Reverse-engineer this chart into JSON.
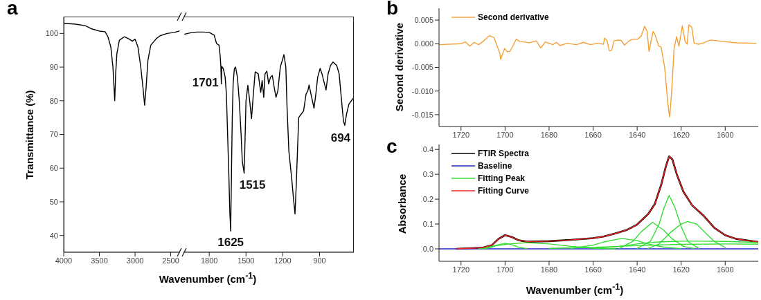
{
  "chart_data": [
    {
      "type": "line",
      "title": "a",
      "ylabel": "Transmittance (%)",
      "xlabel": "Wavenumber (cm$^{-1}$)",
      "xlim": [
        4000,
        2370
      ],
      "xticks": [
        4000,
        3500,
        3000,
        2500
      ],
      "ylim": [
        35,
        105
      ],
      "yticks": [
        40,
        50,
        60,
        70,
        80,
        90,
        100
      ],
      "series": [
        {
          "color": "#000000",
          "x": [
            4000,
            3850,
            3700,
            3600,
            3500,
            3420,
            3380,
            3340,
            3310,
            3295,
            3285,
            3272,
            3255,
            3220,
            3150,
            3080,
            3040,
            3000,
            2960,
            2920,
            2890,
            2866,
            2845,
            2820,
            2780,
            2700,
            2650,
            2550,
            2450,
            2380
          ],
          "values": [
            103,
            102.8,
            102.3,
            101.3,
            100.7,
            100.5,
            99,
            96,
            90,
            84,
            80,
            88,
            94,
            98,
            99,
            98.3,
            97.7,
            98.3,
            96,
            90,
            84,
            78.7,
            84,
            92,
            96.5,
            98.5,
            99.3,
            100,
            100.3,
            100.7
          ]
        }
      ]
    },
    {
      "type": "line",
      "xlim": [
        2010,
        620
      ],
      "xticks": [
        1800,
        1500,
        1200,
        900
      ],
      "ylim": [
        35,
        105
      ],
      "yticks": [
        40,
        50,
        60,
        70,
        80,
        90,
        100
      ],
      "tick_labels": "x",
      "annotations": [
        {
          "text": "1701",
          "x": 1701,
          "y": 85
        },
        {
          "text": "1625",
          "x": 1625,
          "y": 41.3
        },
        {
          "text": "1515",
          "x": 1515,
          "y": 58.5
        },
        {
          "text": "694",
          "x": 694,
          "y": 72.7
        }
      ],
      "series": [
        {
          "color": "#000000",
          "x": [
            2000,
            1950,
            1900,
            1850,
            1800,
            1760,
            1740,
            1720,
            1710,
            1705,
            1701,
            1698,
            1685,
            1670,
            1660,
            1650,
            1640,
            1632,
            1625,
            1618,
            1612,
            1605,
            1595,
            1585,
            1570,
            1555,
            1540,
            1530,
            1515,
            1508,
            1500,
            1485,
            1470,
            1455,
            1440,
            1425,
            1400,
            1380,
            1368,
            1355,
            1345,
            1330,
            1315,
            1300,
            1285,
            1270,
            1255,
            1240,
            1220,
            1190,
            1175,
            1165,
            1150,
            1130,
            1110,
            1100,
            1090,
            1080,
            1070,
            1050,
            1030,
            1010,
            995,
            985,
            970,
            945,
            930,
            915,
            895,
            880,
            847,
            830,
            810,
            790,
            760,
            740,
            720,
            705,
            694,
            680,
            660,
            640,
            620
          ],
          "values": [
            99.8,
            100.2,
            100.4,
            100.4,
            100.3,
            99.5,
            97,
            96.5,
            93,
            90,
            85,
            90.2,
            89.5,
            87,
            82,
            70,
            58,
            47,
            41.3,
            60,
            75,
            85,
            89.5,
            90,
            87,
            80,
            70,
            62,
            58.5,
            68,
            80,
            84.6,
            80,
            74.7,
            82,
            88.6,
            88,
            82.5,
            86,
            81,
            88,
            88.8,
            85,
            87,
            87.5,
            84,
            81,
            83,
            90,
            93.7,
            90,
            78,
            65,
            58,
            50,
            46.4,
            55,
            65,
            75,
            76,
            77,
            82,
            83,
            84.7,
            82,
            77.8,
            82,
            87,
            89.6,
            88,
            83.2,
            88,
            90.5,
            91.5,
            90.5,
            88,
            80,
            74,
            72.7,
            76,
            79,
            80,
            81
          ]
        }
      ]
    },
    {
      "type": "line",
      "title": "b",
      "ylabel": "Second derivative",
      "xlim": [
        1730,
        1585
      ],
      "xticks": [
        1720,
        1700,
        1680,
        1660,
        1640,
        1620,
        1600
      ],
      "ylim": [
        -0.0175,
        0.0075
      ],
      "yticks": [
        {
          "value": 0.005,
          "label": "0.005"
        },
        {
          "value": 0,
          "label": "0.000"
        },
        {
          "value": -0.005,
          "label": "-0.005"
        },
        {
          "value": -0.01,
          "label": "-0.010"
        },
        {
          "value": -0.015,
          "label": "-0.015"
        }
      ],
      "legend": "top left",
      "series": [
        {
          "name": "Second derivative",
          "color": "#f5a033",
          "x": [
            1730,
            1720,
            1718,
            1716,
            1714,
            1712,
            1710,
            1707.2,
            1705,
            1702.4,
            1702,
            1700.2,
            1699,
            1697.8,
            1696.5,
            1694.9,
            1693.3,
            1689,
            1685.8,
            1683.8,
            1681.7,
            1678.3,
            1676.7,
            1675,
            1671.9,
            1667.6,
            1664.4,
            1661.2,
            1658,
            1655.3,
            1654.8,
            1653.7,
            1652.6,
            1651.6,
            1650.5,
            1648.9,
            1647.3,
            1645.7,
            1644,
            1642.5,
            1639.8,
            1638.2,
            1636.6,
            1635.5,
            1634.6,
            1632.8,
            1631.8,
            1630.2,
            1629.1,
            1627.5,
            1626.1,
            1625.2,
            1624.3,
            1623.2,
            1622.1,
            1621,
            1619.5,
            1618.2,
            1617.3,
            1616.5,
            1615.2,
            1614.1,
            1612,
            1609.8,
            1606.6,
            1601.3,
            1594.9,
            1586
          ],
          "values": [
            -0.0002,
            0,
            0.0004,
            -0.0005,
            0.0003,
            -0.0002,
            0.0005,
            0.0017,
            0.0013,
            -0.002,
            -0.0033,
            -0.001,
            -0.0017,
            -0.0016,
            -0.0005,
            0.001,
            0.0005,
            0.0002,
            0.0006,
            -0.0009,
            0.0004,
            -0.0002,
            0.0003,
            -0.0004,
            0.0001,
            -0.0002,
            0.0003,
            -0.0002,
            0.0001,
            -0.0001,
            0.0012,
            0.0007,
            -0.0015,
            -0.0014,
            0.0006,
            0.0008,
            0.0007,
            -0.0003,
            0.0005,
            0.0009,
            0.001,
            0.0016,
            0.0037,
            0.0027,
            -0.0016,
            0.0026,
            0.0018,
            -0.0005,
            -0.0007,
            -0.005,
            -0.0125,
            -0.0155,
            -0.01,
            -0.001,
            0.0015,
            -0.0005,
            0.0038,
            0.0005,
            -0.0001,
            0.004,
            0.0035,
            0.0001,
            -0.0001,
            0.0002,
            0.0008,
            0.0005,
            0.0002,
            0.0001
          ]
        }
      ]
    },
    {
      "type": "line",
      "title": "c",
      "ylabel": "Absorbance",
      "xlabel": "Wavenumber (cm$^{-1}$)",
      "xlim": [
        1730,
        1585
      ],
      "xticks": [
        1720,
        1700,
        1680,
        1660,
        1640,
        1620,
        1600
      ],
      "ylim": [
        -0.05,
        0.42
      ],
      "yticks": [
        {
          "value": 0,
          "label": "0.0"
        },
        {
          "value": 0.1,
          "label": "0.1"
        },
        {
          "value": 0.2,
          "label": "0.2"
        },
        {
          "value": 0.3,
          "label": "0.3"
        },
        {
          "value": 0.4,
          "label": "0.4"
        }
      ],
      "legend": "top left",
      "series": [
        {
          "name": "FTIR Spectra",
          "color": "#000000",
          "x": [
            1722,
            1710,
            1706,
            1703,
            1700,
            1697,
            1694,
            1690,
            1680,
            1670,
            1660,
            1655,
            1650,
            1645,
            1640,
            1635,
            1632,
            1629,
            1627,
            1625.5,
            1624,
            1622,
            1619,
            1615,
            1610,
            1605,
            1600,
            1595,
            1585
          ],
          "values": [
            0,
            0.005,
            0.015,
            0.04,
            0.055,
            0.048,
            0.035,
            0.029,
            0.031,
            0.036,
            0.043,
            0.05,
            0.062,
            0.075,
            0.098,
            0.14,
            0.18,
            0.26,
            0.33,
            0.372,
            0.36,
            0.3,
            0.23,
            0.175,
            0.135,
            0.085,
            0.055,
            0.04,
            0.028
          ]
        },
        {
          "name": "Baseline",
          "color": "#2222cc",
          "x": [
            1730,
            1585
          ],
          "values": [
            0,
            0
          ]
        },
        {
          "name": "Fitting Peak",
          "color": "#33dd33",
          "x": [
            1710,
            1706,
            1703,
            1700,
            1697,
            1694,
            1690
          ],
          "values": [
            0,
            0.007,
            0.017,
            0.022,
            0.017,
            0.007,
            0.001
          ]
        },
        {
          "color": "#33dd33",
          "x": [
            1712,
            1705,
            1698,
            1690,
            1680,
            1670,
            1660,
            1650
          ],
          "values": [
            0,
            0.012,
            0.02,
            0.025,
            0.02,
            0.01,
            0.003,
            0
          ]
        },
        {
          "color": "#33dd33",
          "x": [
            1670,
            1660,
            1655,
            1647,
            1640,
            1635,
            1628,
            1620
          ],
          "values": [
            0.002,
            0.015,
            0.028,
            0.042,
            0.033,
            0.02,
            0.007,
            0.001
          ]
        },
        {
          "color": "#33dd33",
          "x": [
            1648,
            1642,
            1638,
            1633,
            1628,
            1624,
            1619,
            1614
          ],
          "values": [
            0.002,
            0.03,
            0.07,
            0.107,
            0.075,
            0.04,
            0.01,
            0.001
          ]
        },
        {
          "color": "#33dd33",
          "x": [
            1640,
            1634,
            1630,
            1628,
            1625.5,
            1623,
            1620,
            1617,
            1612
          ],
          "values": [
            0.002,
            0.03,
            0.1,
            0.16,
            0.215,
            0.17,
            0.09,
            0.03,
            0.002
          ]
        },
        {
          "color": "#33dd33",
          "x": [
            1635,
            1630,
            1625,
            1620,
            1617,
            1613,
            1609,
            1605,
            1600
          ],
          "values": [
            0.002,
            0.02,
            0.065,
            0.1,
            0.11,
            0.1,
            0.065,
            0.03,
            0.005
          ]
        },
        {
          "color": "#33dd33",
          "x": [
            1660,
            1650,
            1640,
            1630,
            1620,
            1610,
            1600,
            1590,
            1585
          ],
          "values": [
            0.002,
            0.008,
            0.02,
            0.028,
            0.031,
            0.031,
            0.03,
            0.027,
            0.025
          ]
        },
        {
          "color": "#33dd33",
          "x": [
            1680,
            1660,
            1640,
            1620,
            1600,
            1585
          ],
          "values": [
            0.002,
            0.006,
            0.013,
            0.018,
            0.02,
            0.019
          ]
        },
        {
          "name": "Fitting Curve",
          "color": "#ee2222",
          "x": [
            1722,
            1710,
            1706,
            1703,
            1700,
            1697,
            1694,
            1690,
            1680,
            1670,
            1660,
            1655,
            1650,
            1645,
            1640,
            1635,
            1632,
            1629,
            1627,
            1625.5,
            1624,
            1622,
            1619,
            1615,
            1610,
            1605,
            1600,
            1595,
            1585
          ],
          "values": [
            0,
            0.005,
            0.015,
            0.04,
            0.055,
            0.048,
            0.035,
            0.029,
            0.031,
            0.036,
            0.043,
            0.05,
            0.062,
            0.075,
            0.098,
            0.14,
            0.18,
            0.26,
            0.33,
            0.372,
            0.36,
            0.3,
            0.23,
            0.175,
            0.135,
            0.085,
            0.055,
            0.04,
            0.028
          ]
        }
      ]
    }
  ]
}
